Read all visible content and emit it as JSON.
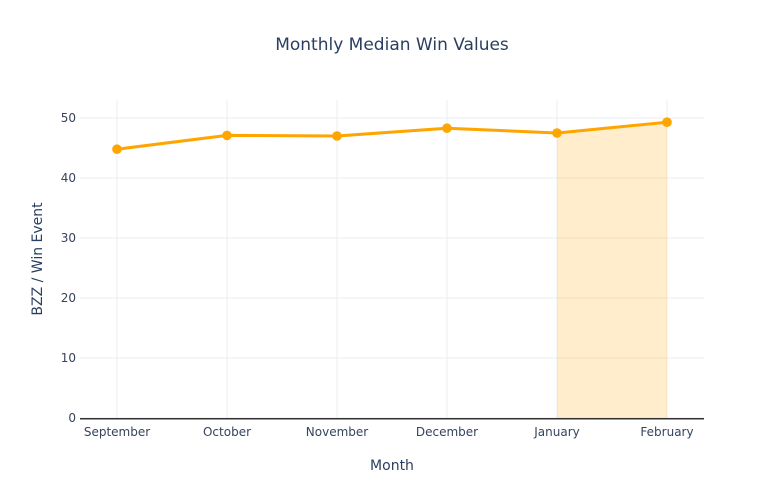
{
  "chart_data": {
    "type": "line",
    "title": "Monthly Median Win Values",
    "xlabel": "Month",
    "ylabel": "BZZ / Win Event",
    "categories": [
      "September",
      "October",
      "November",
      "December",
      "January",
      "February"
    ],
    "values": [
      44.8,
      47.1,
      47.0,
      48.3,
      47.5,
      49.3
    ],
    "ylim": [
      0,
      50
    ],
    "yticks": [
      0,
      10,
      20,
      30,
      40,
      50
    ],
    "grid": true,
    "legend": "none",
    "line_color": "#ffa500",
    "marker_color": "#ffa500",
    "highlight_region": {
      "from": "January",
      "to": "February",
      "fill": "rgba(255,165,0,0.2)"
    }
  }
}
